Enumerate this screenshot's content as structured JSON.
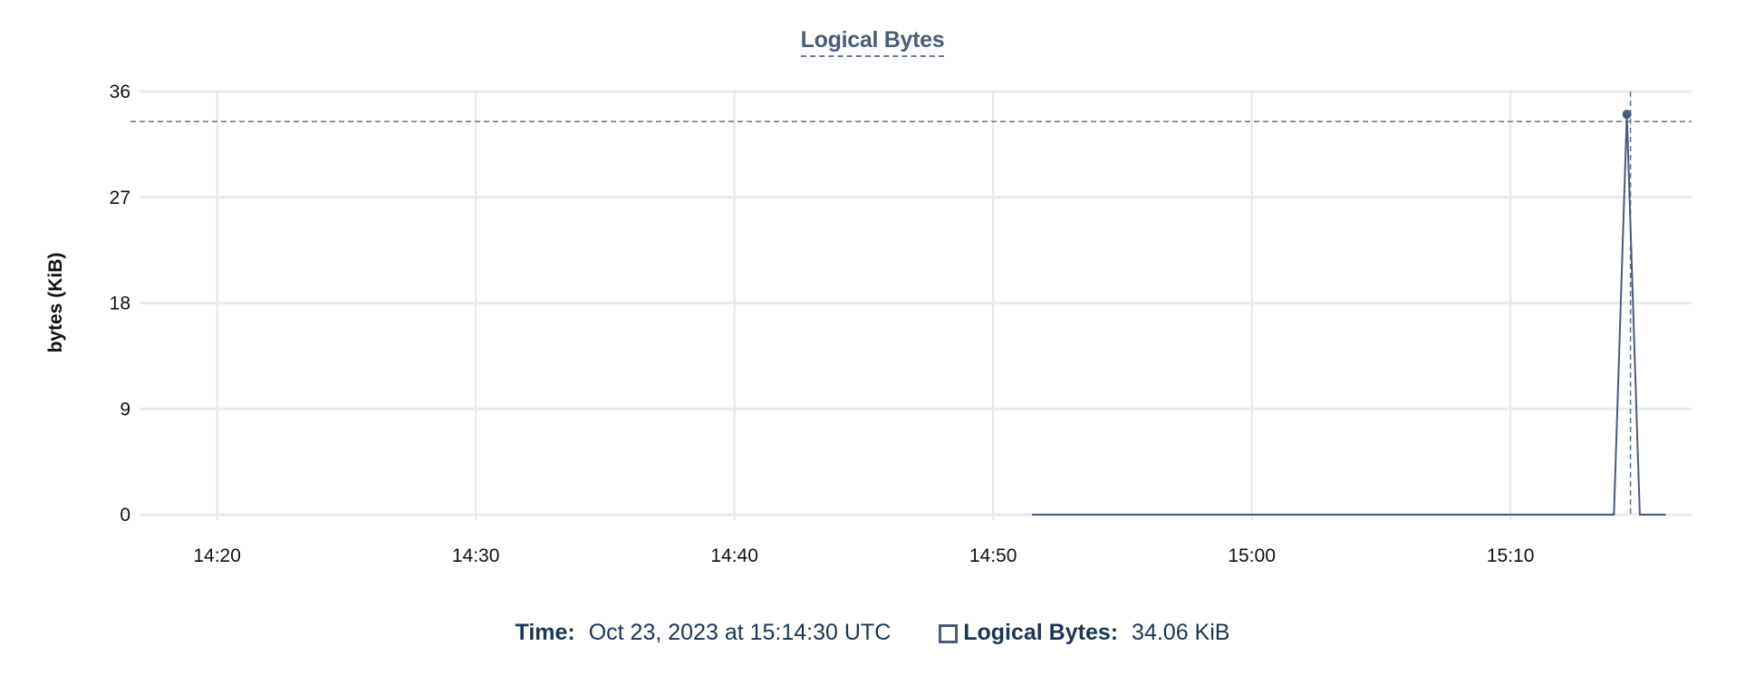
{
  "chart_data": {
    "type": "line",
    "title": "Logical Bytes",
    "ylabel": "bytes (KiB)",
    "xlabel": "",
    "ylim": [
      0,
      36
    ],
    "yticks": [
      0,
      9,
      18,
      27,
      36
    ],
    "xlim": [
      "14:17",
      "15:17"
    ],
    "xticks": [
      "14:20",
      "14:30",
      "14:40",
      "14:50",
      "15:00",
      "15:10"
    ],
    "grid": true,
    "series": [
      {
        "name": "Logical Bytes",
        "color": "#4b5b7a",
        "points": [
          [
            "14:51:30",
            0
          ],
          [
            "15:14:00",
            0
          ],
          [
            "15:14:30",
            34.06
          ],
          [
            "15:15:00",
            0
          ],
          [
            "15:16:00",
            0
          ]
        ]
      }
    ],
    "crosshair": {
      "time": "15:14:30",
      "value": 34.06
    },
    "tooltip": {
      "time_label": "Time:",
      "time_value": "Oct 23, 2023 at 15:14:30 UTC",
      "series_label": "Logical Bytes:",
      "series_value": "34.06 KiB"
    }
  }
}
